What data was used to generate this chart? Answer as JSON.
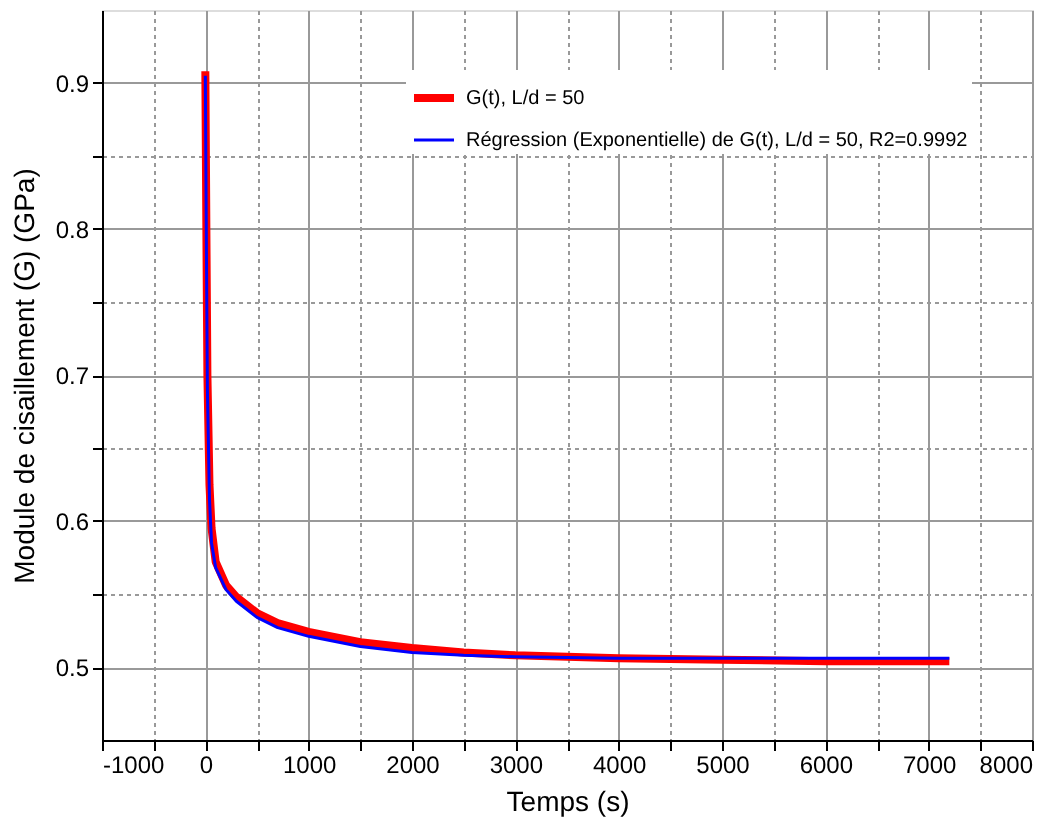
{
  "chart_data": {
    "type": "line",
    "xlabel": "Temps (s)",
    "ylabel": "Module de cisaillement (G) (GPa)",
    "xlim": [
      -1000,
      8000
    ],
    "xticks": [
      -1000,
      {
        "value": -500,
        "label": null
      },
      0,
      {
        "value": 500,
        "label": null
      },
      1000,
      {
        "value": 1500,
        "label": null
      },
      2000,
      {
        "value": 2500,
        "label": null
      },
      3000,
      {
        "value": 3500,
        "label": null
      },
      4000,
      {
        "value": 4500,
        "label": null
      },
      5000,
      {
        "value": 5500,
        "label": null
      },
      6000,
      {
        "value": 6500,
        "label": null
      },
      7000,
      {
        "value": 7500,
        "label": null
      },
      8000
    ],
    "ylim": [
      0.45,
      0.95
    ],
    "yticks": [
      0.5,
      {
        "value": 0.55,
        "label": null
      },
      0.6,
      {
        "value": 0.65,
        "label": null
      },
      0.7,
      {
        "value": 0.75,
        "label": null
      },
      0.8,
      {
        "value": 0.85,
        "label": null
      },
      0.9
    ],
    "grid": true,
    "legend": "top right",
    "line_style": "solid",
    "marker": "none",
    "series": [
      {
        "name": "G(t), L/d = 50",
        "color": "#ff0000",
        "x": [
          0,
          10,
          20,
          40,
          60,
          100,
          200,
          300,
          500,
          700,
          1000,
          1500,
          2000,
          2500,
          3000,
          4000,
          5000,
          6000,
          7200
        ],
        "values": [
          0.908,
          0.8,
          0.7,
          0.625,
          0.595,
          0.572,
          0.556,
          0.548,
          0.537,
          0.53,
          0.524,
          0.517,
          0.513,
          0.51,
          0.508,
          0.506,
          0.505,
          0.504,
          0.504
        ]
      },
      {
        "name": "Régression (Exponentielle) de G(t), L/d = 50, R2=0.9992",
        "color": "#0000ff",
        "x": [
          0,
          10,
          20,
          40,
          60,
          100,
          200,
          300,
          500,
          700,
          1000,
          1500,
          2000,
          2500,
          3000,
          4000,
          5000,
          6000,
          7200
        ],
        "values": [
          0.905,
          0.79,
          0.69,
          0.615,
          0.585,
          0.568,
          0.553,
          0.545,
          0.534,
          0.527,
          0.521,
          0.514,
          0.51,
          0.508,
          0.507,
          0.506,
          0.506,
          0.506,
          0.506
        ]
      }
    ]
  }
}
